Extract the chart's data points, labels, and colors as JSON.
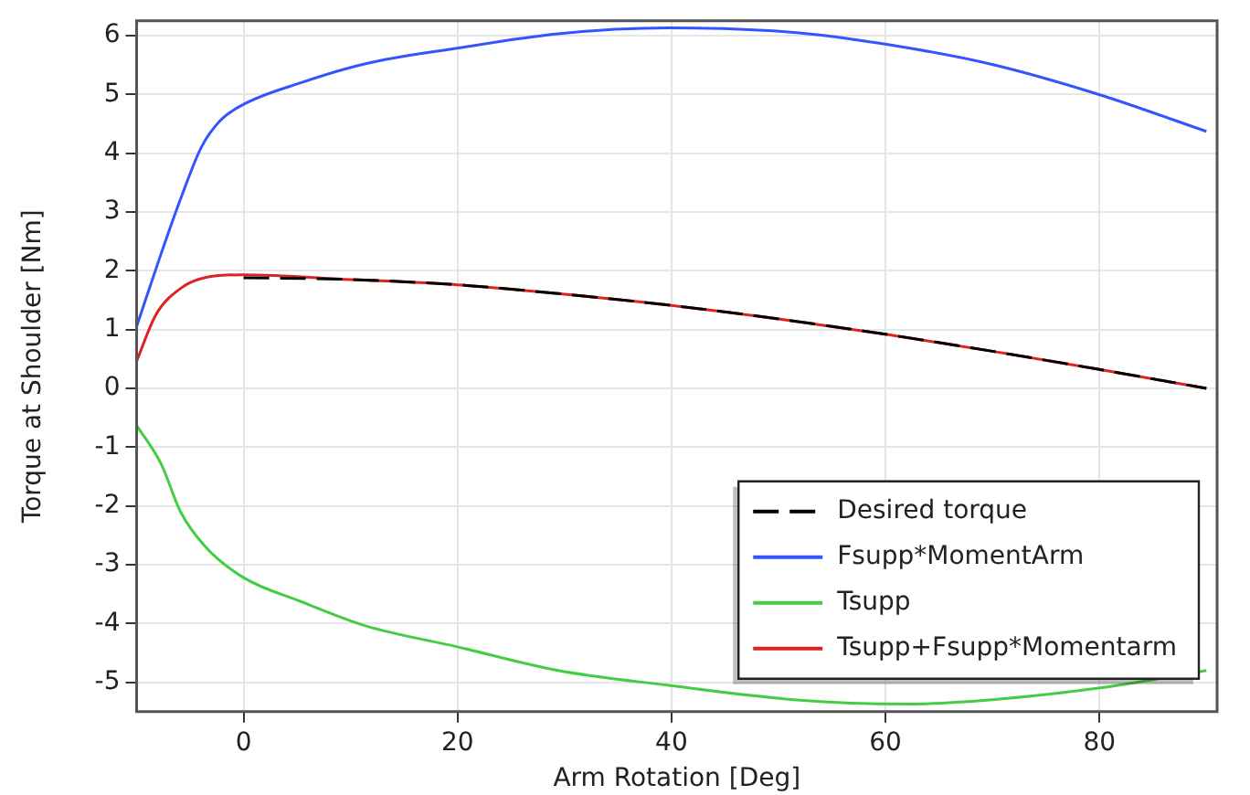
{
  "chart_data": {
    "type": "line",
    "xlabel": "Arm Rotation [Deg]",
    "ylabel": "Torque at Shoulder [Nm]",
    "xlim": [
      -10,
      91
    ],
    "ylim": [
      -5.5,
      6.25
    ],
    "xticks": [
      0,
      20,
      40,
      60,
      80
    ],
    "yticks": [
      -5,
      -4,
      -3,
      -2,
      -1,
      0,
      1,
      2,
      3,
      4,
      5,
      6
    ],
    "grid": true,
    "legend": "bottom right",
    "marker": "none",
    "series": [
      {
        "name": "Desired torque",
        "color": "#000000",
        "line_style": "dashed",
        "x": [
          0,
          10,
          20,
          30,
          40,
          50,
          60,
          70,
          80,
          90
        ],
        "values": [
          1.88,
          1.85,
          1.76,
          1.6,
          1.41,
          1.18,
          0.92,
          0.63,
          0.32,
          0
        ]
      },
      {
        "name": "Fsupp*MomentArm",
        "color": "#3355ff",
        "line_style": "solid",
        "x": [
          -10,
          -7.75,
          -5.75,
          -3.95,
          -2.15,
          0,
          5.4,
          11.4,
          19.8,
          29.4,
          39.6,
          51.7,
          60.1,
          69.7,
          79.9,
          90
        ],
        "values": [
          1.05,
          2.27,
          3.29,
          4.1,
          4.56,
          4.83,
          5.2,
          5.52,
          5.78,
          6.03,
          6.13,
          6.05,
          5.85,
          5.52,
          5.0,
          4.37
        ]
      },
      {
        "name": "Tsupp",
        "color": "#44cc44",
        "line_style": "solid",
        "x": [
          -10,
          -7.7,
          -5.9,
          -3.5,
          0,
          5.4,
          11.4,
          19.8,
          29.4,
          39.6,
          51.7,
          62,
          69.7,
          79.9,
          90
        ],
        "values": [
          -0.63,
          -1.29,
          -2.1,
          -2.71,
          -3.22,
          -3.63,
          -4.04,
          -4.39,
          -4.8,
          -5.05,
          -5.3,
          -5.37,
          -5.3,
          -5.1,
          -4.8
        ]
      },
      {
        "name": "Tsupp+Fsupp*Momentarm",
        "color": "#dd2222",
        "line_style": "solid",
        "x": [
          -10,
          -8.2,
          -5.8,
          -3.4,
          0,
          10,
          20,
          30,
          40,
          50,
          60,
          70,
          80,
          90
        ],
        "values": [
          0.46,
          1.25,
          1.71,
          1.89,
          1.93,
          1.85,
          1.76,
          1.6,
          1.41,
          1.18,
          0.92,
          0.63,
          0.32,
          0
        ]
      }
    ]
  }
}
